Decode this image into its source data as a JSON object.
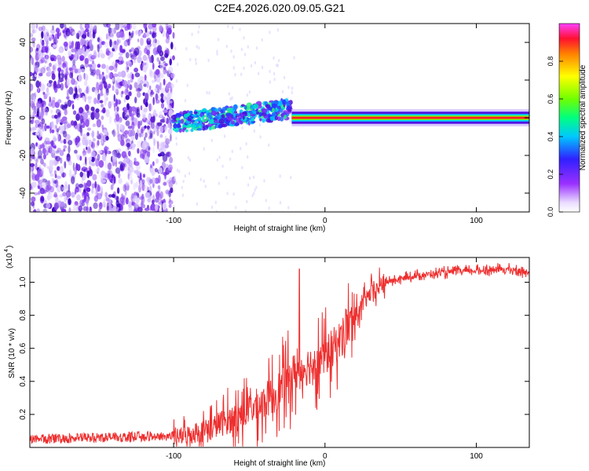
{
  "title": "C2E4.2026.020.09.05.G21",
  "colors": {
    "spectrum_low": "#e6d9ff",
    "spectrum_mid": "#7a2cf0",
    "spectrum_high": "#3a00c0",
    "line": "#ef3030",
    "axis": "#000000"
  },
  "chart_data": [
    {
      "type": "heatmap",
      "name": "spectrogram",
      "title": "C2E4.2026.020.09.05.G21",
      "xlabel": "Height of straight line (km)",
      "ylabel": "Frequency (Hz)",
      "xlim": [
        -195,
        135
      ],
      "ylim": [
        -50,
        50
      ],
      "xticks": [
        -100,
        0,
        100
      ],
      "xtick_labels": [
        "-100",
        "0",
        "100"
      ],
      "yticks": [
        -40,
        -20,
        0,
        20,
        40
      ],
      "ytick_labels": [
        "-40",
        "-20",
        "0",
        "20",
        "40"
      ],
      "colorbar": {
        "label": "Normalized spectral amplitude",
        "range": [
          0,
          1
        ],
        "ticks": [
          0.0,
          0.2,
          0.4,
          0.6,
          0.8
        ],
        "tick_labels": [
          "0.0",
          "0.2",
          "0.4",
          "0.6",
          "0.8"
        ]
      },
      "features": [
        {
          "label": "noise",
          "x_range": [
            -195,
            -100
          ],
          "freq_range": [
            -50,
            50
          ],
          "amplitude": 0.15
        },
        {
          "label": "acquisition",
          "x_range": [
            -100,
            -22
          ],
          "freq_center": [
            -3,
            5
          ],
          "amplitude": 0.45
        },
        {
          "label": "tone",
          "x_range": [
            -22,
            135
          ],
          "freq": 0,
          "amplitude": 0.95
        }
      ]
    },
    {
      "type": "line",
      "name": "snr",
      "xlabel": "Height of straight line (km)",
      "ylabel": "SNR (10 * v/v)",
      "y_scale_label": "(x10",
      "y_scale_exp": "4",
      "xlim": [
        -195,
        135
      ],
      "ylim": [
        0,
        1.15
      ],
      "xticks": [
        -100,
        0,
        100
      ],
      "xtick_labels": [
        "-100",
        "0",
        "100"
      ],
      "yticks": [
        0.2,
        0.4,
        0.6,
        0.8,
        1.0
      ],
      "ytick_labels": [
        "0.2",
        "0.4",
        "0.6",
        "0.8",
        "1.0"
      ],
      "series": [
        {
          "name": "SNR",
          "x": [
            -195,
            -150,
            -100,
            -80,
            -60,
            -40,
            -30,
            -20,
            -10,
            0,
            10,
            20,
            30,
            40,
            60,
            80,
            100,
            120,
            135
          ],
          "y": [
            0.04,
            0.05,
            0.06,
            0.1,
            0.18,
            0.28,
            0.35,
            0.45,
            0.5,
            0.55,
            0.65,
            0.8,
            0.93,
            1.0,
            1.04,
            1.06,
            1.07,
            1.08,
            1.06
          ]
        }
      ],
      "annotations": [
        {
          "x": -17,
          "y": 1.08,
          "label": "spike"
        }
      ]
    }
  ]
}
